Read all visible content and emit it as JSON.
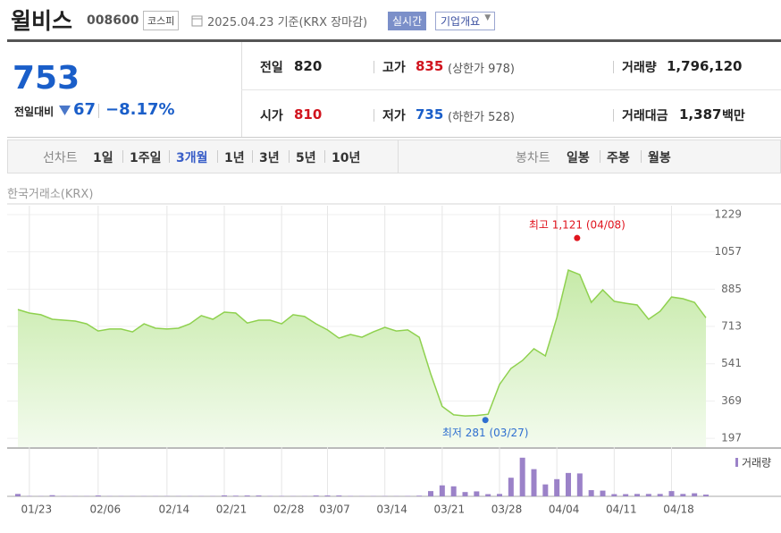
{
  "header": {
    "title": "윌비스",
    "code": "008600",
    "market": "코스피",
    "date": "2025.04.23 기준(KRX 장마감)",
    "realtime": "실시간",
    "company": "기업개요"
  },
  "quote": {
    "price": "753",
    "change_label": "전일대비",
    "change": "67",
    "change_rate": "−8.17%",
    "stats": [
      {
        "label": "전일",
        "value": "820"
      },
      {
        "label": "고가",
        "value": "835",
        "note": "(상한가 978)"
      },
      {
        "label": "거래량",
        "value": "1,796,120"
      },
      {
        "label": "시가",
        "value": "810"
      },
      {
        "label": "저가",
        "value": "735",
        "note": "(하한가 528)"
      },
      {
        "label": "거래대금",
        "value": "1,387",
        "unit": "백만"
      }
    ]
  },
  "line_tabs": {
    "label": "선차트",
    "items": [
      "1일",
      "1주일",
      "3개월",
      "1년",
      "3년",
      "5년",
      "10년"
    ],
    "active": 2
  },
  "candle_tabs": {
    "label": "봉차트",
    "items": [
      "일봉",
      "주봉",
      "월봉"
    ]
  },
  "source": "한국거래소(KRX)",
  "chart_data": [
    {
      "type": "area",
      "color": "#8fd14f",
      "values": [
        791,
        775,
        767,
        746,
        742,
        738,
        725,
        692,
        701,
        701,
        688,
        725,
        705,
        701,
        705,
        725,
        763,
        746,
        779,
        775,
        729,
        742,
        742,
        725,
        767,
        759,
        725,
        697,
        659,
        676,
        663,
        688,
        709,
        692,
        697,
        663,
        494,
        344,
        305,
        300,
        302,
        308,
        445,
        519,
        556,
        610,
        577,
        754,
        973,
        952,
        824,
        882,
        829,
        820,
        812,
        746,
        783,
        849,
        841,
        824,
        753
      ],
      "ylim": [
        156,
        1229
      ],
      "yticks": [
        197,
        369,
        541,
        713,
        885,
        1057,
        1229
      ],
      "grid": true,
      "annotations": [
        {
          "text": "최고 1,121 (04/08)",
          "value": 1121,
          "color": "#e0141e"
        },
        {
          "text": "최저 281 (03/27)",
          "value": 281,
          "color": "#2f6fd0"
        }
      ]
    },
    {
      "type": "bar",
      "categories": [
        null,
        "01/23",
        null,
        null,
        null,
        null,
        null,
        "02/06",
        null,
        null,
        null,
        null,
        null,
        "02/14",
        null,
        null,
        null,
        null,
        "02/21",
        null,
        null,
        null,
        null,
        "02/28",
        null,
        null,
        null,
        "03/07",
        null,
        null,
        null,
        null,
        "03/14",
        null,
        null,
        null,
        null,
        "03/21",
        null,
        null,
        null,
        null,
        "03/28",
        null,
        null,
        null,
        null,
        "04/04",
        null,
        null,
        null,
        null,
        "04/11",
        null,
        null,
        null,
        null,
        "04/18",
        null,
        null,
        null
      ],
      "series": [
        {
          "name": "거래량",
          "color": "#9b82c8",
          "values": [
            2500000,
            400000,
            300000,
            1200000,
            300000,
            300000,
            300000,
            900000,
            300000,
            300000,
            300000,
            300000,
            300000,
            300000,
            300000,
            300000,
            300000,
            300000,
            1000000,
            700000,
            900000,
            900000,
            400000,
            400000,
            300000,
            300000,
            900000,
            900000,
            900000,
            400000,
            300000,
            300000,
            300000,
            300000,
            400000,
            700000,
            5500000,
            11500000,
            10500000,
            4500000,
            5200000,
            2300000,
            2500000,
            19500000,
            40500000,
            28500000,
            12500000,
            18000000,
            24500000,
            24000000,
            6500000,
            6000000,
            2300000,
            2300000,
            2500000,
            2500000,
            2500000,
            5500000,
            2500000,
            3200000,
            1796120
          ]
        }
      ],
      "ylim": [
        0,
        45000000
      ]
    }
  ]
}
